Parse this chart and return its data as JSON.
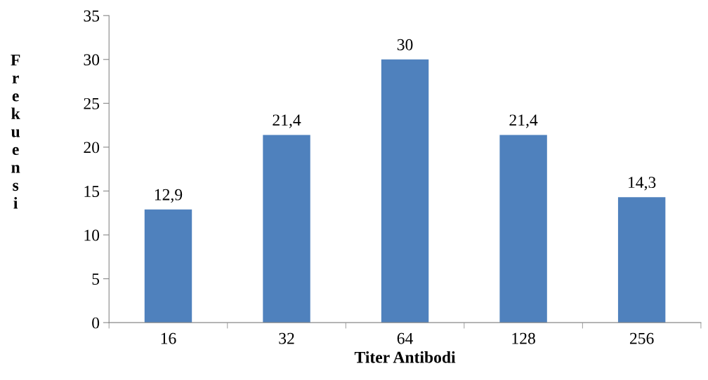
{
  "chart_data": {
    "type": "bar",
    "xlabel": "Titer Antibodi",
    "ylabel": "Frekuensi",
    "categories": [
      "16",
      "32",
      "64",
      "128",
      "256"
    ],
    "values": [
      12.9,
      21.4,
      30,
      21.4,
      14.3
    ],
    "value_labels": [
      "12,9",
      "21,4",
      "30",
      "21,4",
      "14,3"
    ],
    "color": "#4f81bd",
    "ylim": [
      0,
      35
    ],
    "yticks": [
      0,
      5,
      10,
      15,
      20,
      25,
      30,
      35
    ],
    "grid": false,
    "legend": false
  }
}
